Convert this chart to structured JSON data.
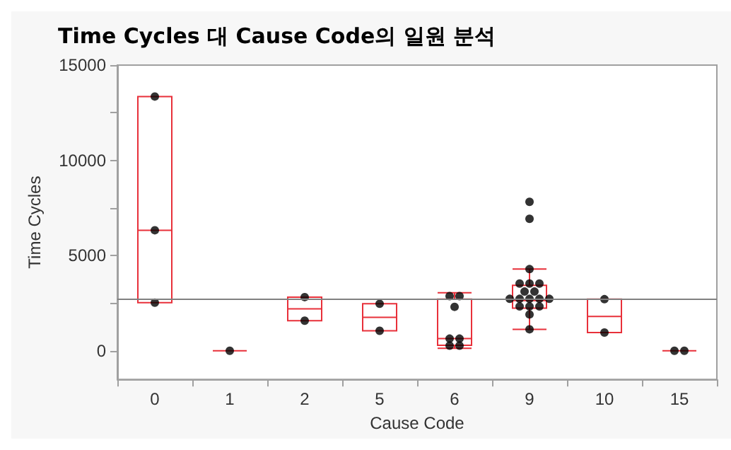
{
  "chart_data": {
    "type": "box",
    "title": "Time Cycles 대 Cause Code의 일원 분석",
    "xlabel": "Cause Code",
    "ylabel": "Time Cycles",
    "categories": [
      "0",
      "1",
      "2",
      "5",
      "6",
      "9",
      "10",
      "15"
    ],
    "color": "#e8303a",
    "boxes": [
      {
        "low": 2530,
        "q1": 2530,
        "median": 6330,
        "q3": 13350,
        "high": 13350
      },
      {
        "low": 0,
        "q1": 0,
        "median": 0,
        "q3": 0,
        "high": 0
      },
      {
        "low": 1580,
        "q1": 1580,
        "median": 2200,
        "q3": 2820,
        "high": 2820
      },
      {
        "low": 1050,
        "q1": 1050,
        "median": 1760,
        "q3": 2470,
        "high": 2470
      },
      {
        "low": 130,
        "q1": 290,
        "median": 640,
        "q3": 2710,
        "high": 3050
      },
      {
        "low": 1130,
        "q1": 2240,
        "median": 2640,
        "q3": 3440,
        "high": 4290
      },
      {
        "low": 960,
        "q1": 960,
        "median": 1800,
        "q3": 2710,
        "high": 2710
      },
      {
        "low": 0,
        "q1": 0,
        "median": 0,
        "q3": 0,
        "high": 0
      }
    ],
    "series": [
      {
        "type": "scatter",
        "color": "#000000",
        "marker": "circle",
        "x": [
          "0",
          "0",
          "0",
          "1",
          "2",
          "2",
          "5",
          "5",
          "6",
          "6",
          "6",
          "6",
          "6",
          "6",
          "6",
          "9",
          "9",
          "9",
          "9",
          "9",
          "9",
          "9",
          "9",
          "9",
          "9",
          "9",
          "9",
          "9",
          "9",
          "9",
          "9",
          "9",
          "9",
          "10",
          "10",
          "15",
          "15"
        ],
        "values": [
          13350,
          6330,
          2530,
          0,
          2820,
          1580,
          2470,
          1050,
          2870,
          2870,
          2310,
          640,
          640,
          270,
          270,
          7820,
          6930,
          4290,
          3530,
          3530,
          3530,
          3110,
          3110,
          2730,
          2730,
          2730,
          2730,
          2730,
          2330,
          2330,
          2330,
          1910,
          1130,
          2710,
          960,
          0,
          0
        ]
      }
    ],
    "ylim": [
      -1500,
      15000
    ],
    "yticks": [
      0,
      {
        "value": 2500,
        "label": null
      },
      5000,
      {
        "value": 7500,
        "label": null
      },
      10000,
      {
        "value": 12500,
        "label": null
      },
      15000
    ],
    "ref_lines": [
      {
        "axis": "y",
        "value": 2730,
        "color": "#808080"
      }
    ],
    "grid": false
  }
}
